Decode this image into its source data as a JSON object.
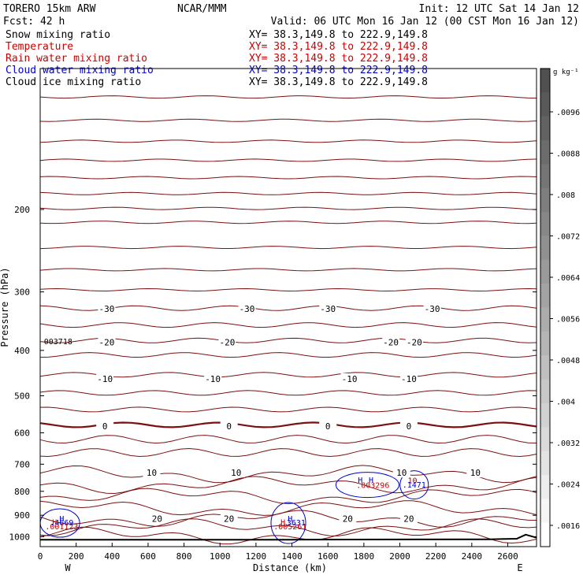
{
  "header": {
    "model": "TORERO  15km ARW",
    "org": "NCAR/MMM",
    "init": "Init: 12 UTC Sat 14 Jan 12",
    "fcst": "Fcst:   42 h",
    "valid": "Valid: 06 UTC Mon 16 Jan 12 (00 CST Mon 16 Jan 12)"
  },
  "fields": [
    {
      "label": "Snow mixing ratio",
      "color": "#000000",
      "xy": "XY=  38.3,149.8 to 222.9,149.8"
    },
    {
      "label": "Temperature",
      "color": "#cc0000",
      "xy": "XY=  38.3,149.8 to 222.9,149.8"
    },
    {
      "label": "Rain water mixing ratio",
      "color": "#cc0000",
      "xy": "XY=  38.3,149.8 to 222.9,149.8"
    },
    {
      "label": "Cloud water mixing ratio",
      "color": "#0000cc",
      "xy": "XY=  38.3,149.8 to 222.9,149.8"
    },
    {
      "label": "Cloud ice mixing ratio",
      "color": "#000000",
      "xy": "XY=  38.3,149.8 to 222.9,149.8"
    }
  ],
  "colors": {
    "isotherm": "#7a1010",
    "freezing": "#7a1010",
    "cloud_water": "#0000cc",
    "rain": "#cc0000",
    "terrain": "#000000"
  },
  "chart_data": {
    "type": "cross-section",
    "xlabel": "Distance (km)",
    "ylabel": "Pressure (hPa)",
    "xlim": [
      0,
      2760
    ],
    "ylim": [
      1050,
      100
    ],
    "y_scale": "log",
    "x_ticks": [
      0,
      200,
      400,
      600,
      800,
      1000,
      1200,
      1400,
      1600,
      1800,
      2000,
      2200,
      2400,
      2600
    ],
    "y_ticks": [
      200,
      300,
      400,
      500,
      600,
      700,
      800,
      900,
      1000
    ],
    "x_end_labels": {
      "left": "W",
      "right": "E"
    },
    "colorbar": {
      "units": "g kg⁻¹",
      "ticks": [
        ".0096",
        ".0088",
        ".008",
        ".0072",
        ".0064",
        ".0056",
        ".0048",
        ".004",
        ".0032",
        ".0024",
        ".0016"
      ]
    },
    "isotherm_labels": [
      {
        "t": "-30",
        "x": 370,
        "p": 326
      },
      {
        "t": "-30",
        "x": 1150,
        "p": 326
      },
      {
        "t": "-30",
        "x": 1600,
        "p": 326
      },
      {
        "t": "-30",
        "x": 2180,
        "p": 326
      },
      {
        "t": "-20",
        "x": 370,
        "p": 384
      },
      {
        "t": "-20",
        "x": 1040,
        "p": 384
      },
      {
        "t": "-20",
        "x": 1950,
        "p": 384
      },
      {
        "t": "-20",
        "x": 2080,
        "p": 384
      },
      {
        "t": "-10",
        "x": 360,
        "p": 460
      },
      {
        "t": "-10",
        "x": 960,
        "p": 460
      },
      {
        "t": "-10",
        "x": 1720,
        "p": 460
      },
      {
        "t": "-10",
        "x": 2050,
        "p": 460
      },
      {
        "t": "0",
        "x": 360,
        "p": 580
      },
      {
        "t": "0",
        "x": 1050,
        "p": 580
      },
      {
        "t": "0",
        "x": 1600,
        "p": 580
      },
      {
        "t": "0",
        "x": 2050,
        "p": 580
      },
      {
        "t": "10",
        "x": 620,
        "p": 730
      },
      {
        "t": "10",
        "x": 1090,
        "p": 730
      },
      {
        "t": "10",
        "x": 2010,
        "p": 730
      },
      {
        "t": "10",
        "x": 2420,
        "p": 730
      },
      {
        "t": "20",
        "x": 650,
        "p": 915
      },
      {
        "t": "20",
        "x": 1050,
        "p": 915
      },
      {
        "t": "20",
        "x": 1710,
        "p": 915
      },
      {
        "t": "20",
        "x": 2050,
        "p": 915
      }
    ],
    "extrema": [
      {
        "text": "H",
        "x": 120,
        "p": 928,
        "color": "#0000cc"
      },
      {
        "text": ".4669",
        "x": 120,
        "p": 945,
        "color": "#0000cc"
      },
      {
        "text": "H",
        "x": 80,
        "p": 944,
        "color": "#cc0000"
      },
      {
        "text": ".001123",
        "x": 120,
        "p": 964,
        "color": "#cc0000"
      },
      {
        "text": "H",
        "x": 1390,
        "p": 928,
        "color": "#0000cc"
      },
      {
        "text": "H",
        "x": 1350,
        "p": 944,
        "color": "#cc0000"
      },
      {
        "text": ".3631",
        "x": 1410,
        "p": 945,
        "color": "#0000cc"
      },
      {
        "text": ".005261",
        "x": 1390,
        "p": 964,
        "color": "#cc0000"
      },
      {
        "text": "H",
        "x": 1780,
        "p": 767,
        "color": "#0000cc"
      },
      {
        "text": "H",
        "x": 1840,
        "p": 767,
        "color": "#0000cc"
      },
      {
        "text": ".003296",
        "x": 1850,
        "p": 787,
        "color": "#cc0000"
      },
      {
        "text": ".1471",
        "x": 2080,
        "p": 785,
        "color": "#0000cc"
      },
      {
        "text": "10",
        "x": 2070,
        "p": 768,
        "color": "#7a1010"
      },
      {
        "text": "003718",
        "x": 100,
        "p": 388,
        "color": "#000000"
      }
    ]
  }
}
